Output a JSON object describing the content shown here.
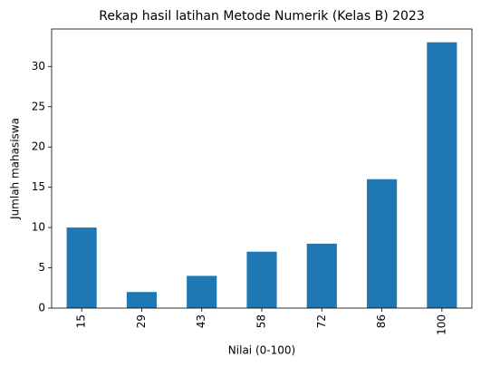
{
  "chart_data": {
    "type": "bar",
    "title": "Rekap hasil latihan Metode Numerik (Kelas B) 2023",
    "x_label": "Nilai (0-100)",
    "y_label": "Jumlah mahasiswa",
    "categories": [
      "15",
      "29",
      "43",
      "58",
      "72",
      "86",
      "100"
    ],
    "values": [
      10,
      2,
      4,
      7,
      8,
      16,
      33
    ],
    "color": "#1f77b4",
    "ylim": [
      0,
      34.65
    ],
    "yticks": [
      0,
      5,
      10,
      15,
      20,
      25,
      30
    ],
    "grid": false
  }
}
